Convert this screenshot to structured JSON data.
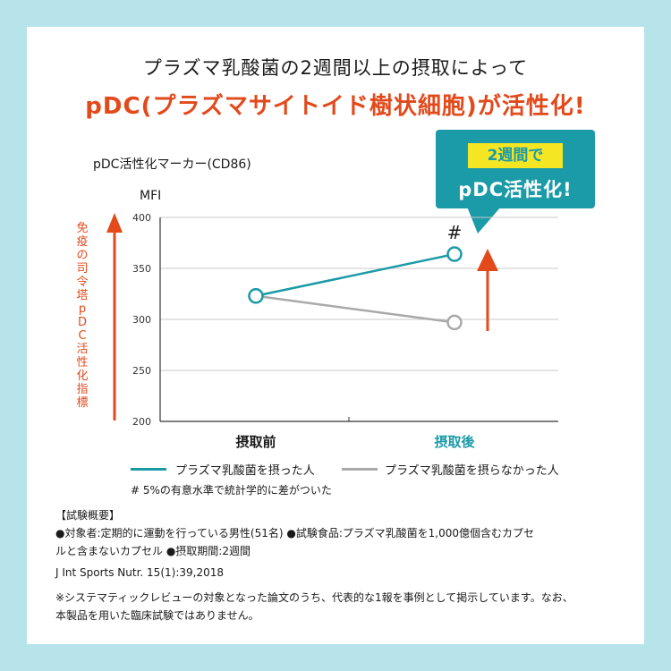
{
  "headline": {
    "line1": "プラズマ乳酸菌の2週間以上の摂取によって",
    "line2": "pDC(プラズマサイトイド樹状細胞)が活性化!"
  },
  "chart_subtitle": "pDC活性化マーカー(CD86)",
  "callout": {
    "top": "2週間で",
    "bottom": "pDC活性化!"
  },
  "colors": {
    "teal": "#1b9aa7",
    "gray": "#a9a9a9",
    "accent": "#e24a1c",
    "callout_label_bg": "#f5e624"
  },
  "chart_data": {
    "type": "line",
    "ylabel_unit": "MFI",
    "vertical_label": "免疫の司令塔 pDC活性化指標",
    "ylim": [
      200,
      400
    ],
    "yticks": [
      200,
      250,
      300,
      350,
      400
    ],
    "categories": [
      "摂取前",
      "摂取後"
    ],
    "grid": true,
    "series": [
      {
        "name": "プラズマ乳酸菌を摂った人",
        "color": "#1b9aa7",
        "values": [
          323,
          364
        ]
      },
      {
        "name": "プラズマ乳酸菌を摂らなかった人",
        "color": "#a9a9a9",
        "values": [
          323,
          297
        ]
      }
    ],
    "significance_marker": "#",
    "significance_note": "# 5%の有意水準で統計学的に差がついた"
  },
  "info": {
    "heading": "【試験概要】",
    "line1": "●対象者:定期的に運動を行っている男性(51名) ●試験食品:プラズマ乳酸菌を1,000億個含むカプセ",
    "line2": "ルと含まないカプセル ●摂取期間:2週間",
    "reference": "J Int Sports Nutr. 15(1):39,2018",
    "disclaimer1": "※システマティックレビューの対象となった論文のうち、代表的な1報を事例として掲示しています。なお、",
    "disclaimer2": "本製品を用いた臨床試験ではありません。"
  }
}
